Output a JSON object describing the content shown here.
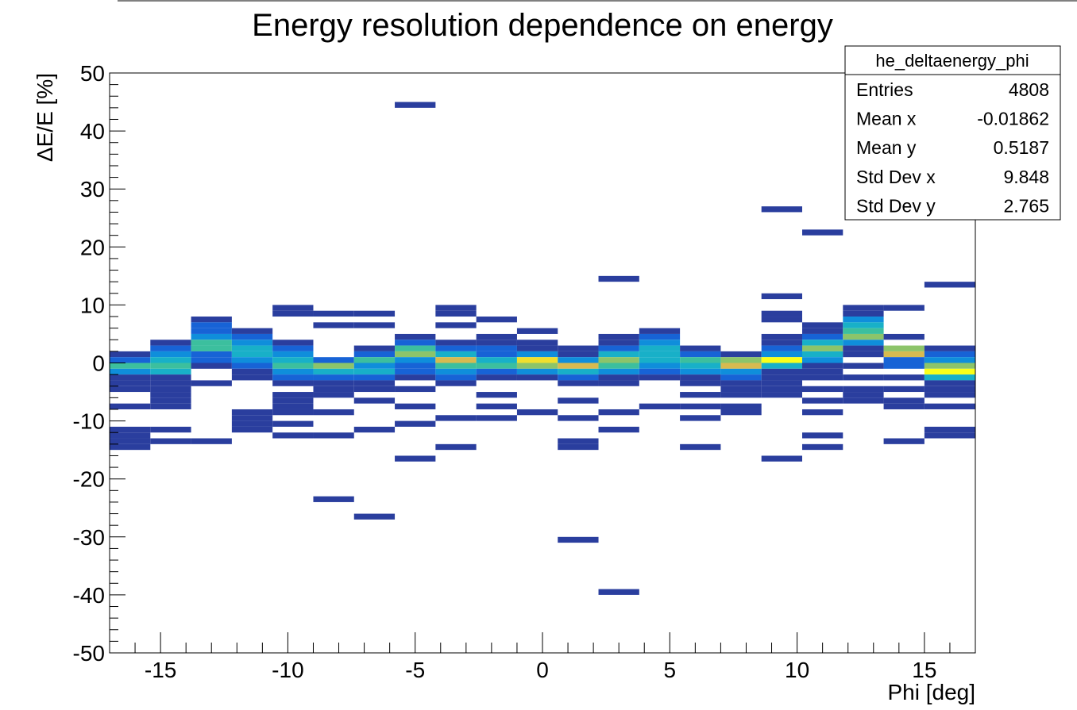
{
  "chart_data": {
    "type": "heatmap",
    "title": "Energy resolution dependence on energy",
    "xlabel": "Phi [deg]",
    "ylabel": "ΔE/E [%]",
    "xlim": [
      -17,
      17
    ],
    "ylim": [
      -50,
      50
    ],
    "x_ticks": [
      -15,
      -10,
      -5,
      0,
      5,
      10,
      15
    ],
    "y_ticks": [
      -50,
      -40,
      -30,
      -20,
      -10,
      0,
      10,
      20,
      30,
      40,
      50
    ],
    "x_tick_labels": [
      "-15",
      "-10",
      "-5",
      "0",
      "5",
      "10",
      "15"
    ],
    "y_tick_labels": [
      "-50",
      "-40",
      "-30",
      "-20",
      "-10",
      "0",
      "10",
      "20",
      "30",
      "40",
      "50"
    ],
    "grid": false,
    "legend": "none",
    "x_bin_edges": [
      -17,
      -15.4,
      -13.8,
      -12.2,
      -10.6,
      -9.0,
      -7.4,
      -5.8,
      -4.2,
      -2.6,
      -1.0,
      0.6,
      2.2,
      3.8,
      5.4,
      7.0,
      8.6,
      10.2,
      11.8,
      13.4,
      15.0,
      17.0
    ],
    "y_bin_width": 1,
    "palette": [
      "#2a3e9e",
      "#1763d6",
      "#0f8edb",
      "#18b0c8",
      "#3cbf9e",
      "#8cc46a",
      "#d7ba50",
      "#f0df2e",
      "#faff1a"
    ],
    "cells": [
      [
        0,
        1,
        1
      ],
      [
        0,
        0,
        2
      ],
      [
        0,
        -1,
        5
      ],
      [
        0,
        -2,
        3
      ],
      [
        0,
        -3,
        1
      ],
      [
        0,
        -4,
        1
      ],
      [
        0,
        -5,
        1
      ],
      [
        0,
        -8,
        1
      ],
      [
        0,
        -12,
        1
      ],
      [
        0,
        -13,
        1
      ],
      [
        0,
        -14,
        1
      ],
      [
        0,
        -15,
        1
      ],
      [
        1,
        3,
        1
      ],
      [
        1,
        2,
        2
      ],
      [
        1,
        1,
        3
      ],
      [
        1,
        0,
        4
      ],
      [
        1,
        -1,
        5
      ],
      [
        1,
        -2,
        4
      ],
      [
        1,
        -3,
        1
      ],
      [
        1,
        -4,
        1
      ],
      [
        1,
        -5,
        1
      ],
      [
        1,
        -6,
        1
      ],
      [
        1,
        -7,
        1
      ],
      [
        1,
        -8,
        1
      ],
      [
        1,
        -12,
        1
      ],
      [
        1,
        -14,
        1
      ],
      [
        2,
        7,
        1
      ],
      [
        2,
        6,
        2
      ],
      [
        2,
        5,
        2
      ],
      [
        2,
        4,
        3
      ],
      [
        2,
        3,
        5
      ],
      [
        2,
        2,
        5
      ],
      [
        2,
        1,
        2
      ],
      [
        2,
        0,
        2
      ],
      [
        2,
        -1,
        1
      ],
      [
        2,
        -4,
        1
      ],
      [
        2,
        -14,
        1
      ],
      [
        3,
        5,
        1
      ],
      [
        3,
        4,
        2
      ],
      [
        3,
        3,
        3
      ],
      [
        3,
        2,
        4
      ],
      [
        3,
        1,
        4
      ],
      [
        3,
        0,
        3
      ],
      [
        3,
        -1,
        2
      ],
      [
        3,
        -2,
        1
      ],
      [
        3,
        -3,
        1
      ],
      [
        3,
        -9,
        1
      ],
      [
        3,
        -10,
        1
      ],
      [
        3,
        -11,
        1
      ],
      [
        3,
        -12,
        1
      ],
      [
        4,
        9,
        1
      ],
      [
        4,
        8,
        1
      ],
      [
        4,
        3,
        1
      ],
      [
        4,
        2,
        2
      ],
      [
        4,
        1,
        3
      ],
      [
        4,
        0,
        4
      ],
      [
        4,
        -1,
        5
      ],
      [
        4,
        -2,
        3
      ],
      [
        4,
        -3,
        2
      ],
      [
        4,
        -4,
        1
      ],
      [
        4,
        -6,
        1
      ],
      [
        4,
        -7,
        1
      ],
      [
        4,
        -8,
        1
      ],
      [
        4,
        -9,
        1
      ],
      [
        4,
        -11,
        1
      ],
      [
        4,
        -13,
        1
      ],
      [
        5,
        8,
        1
      ],
      [
        5,
        6,
        1
      ],
      [
        5,
        0,
        2
      ],
      [
        5,
        -1,
        6
      ],
      [
        5,
        -2,
        4
      ],
      [
        5,
        -3,
        2
      ],
      [
        5,
        -4,
        1
      ],
      [
        5,
        -5,
        1
      ],
      [
        5,
        -6,
        1
      ],
      [
        5,
        -9,
        1
      ],
      [
        5,
        -13,
        1
      ],
      [
        5,
        -24,
        1
      ],
      [
        6,
        8,
        1
      ],
      [
        6,
        6,
        1
      ],
      [
        6,
        2,
        1
      ],
      [
        6,
        1,
        2
      ],
      [
        6,
        0,
        5
      ],
      [
        6,
        -1,
        3
      ],
      [
        6,
        -2,
        4
      ],
      [
        6,
        -3,
        2
      ],
      [
        6,
        -4,
        1
      ],
      [
        6,
        -5,
        1
      ],
      [
        6,
        -7,
        1
      ],
      [
        6,
        -12,
        1
      ],
      [
        6,
        -27,
        1
      ],
      [
        7,
        44,
        1
      ],
      [
        7,
        4,
        1
      ],
      [
        7,
        3,
        2
      ],
      [
        7,
        2,
        5
      ],
      [
        7,
        1,
        6
      ],
      [
        7,
        0,
        3
      ],
      [
        7,
        -1,
        2
      ],
      [
        7,
        -2,
        2
      ],
      [
        7,
        -3,
        1
      ],
      [
        7,
        -5,
        1
      ],
      [
        7,
        -8,
        1
      ],
      [
        7,
        -11,
        1
      ],
      [
        7,
        -17,
        1
      ],
      [
        8,
        9,
        1
      ],
      [
        8,
        8,
        1
      ],
      [
        8,
        6,
        1
      ],
      [
        8,
        3,
        1
      ],
      [
        8,
        2,
        2
      ],
      [
        8,
        1,
        4
      ],
      [
        8,
        0,
        7
      ],
      [
        8,
        -1,
        5
      ],
      [
        8,
        -2,
        3
      ],
      [
        8,
        -3,
        2
      ],
      [
        8,
        -4,
        1
      ],
      [
        8,
        -10,
        1
      ],
      [
        8,
        -15,
        1
      ],
      [
        9,
        7,
        1
      ],
      [
        9,
        4,
        1
      ],
      [
        9,
        3,
        1
      ],
      [
        9,
        2,
        2
      ],
      [
        9,
        1,
        2
      ],
      [
        9,
        0,
        4
      ],
      [
        9,
        -1,
        5
      ],
      [
        9,
        -2,
        2
      ],
      [
        9,
        -3,
        1
      ],
      [
        9,
        -6,
        1
      ],
      [
        9,
        -8,
        1
      ],
      [
        9,
        -10,
        1
      ],
      [
        10,
        5,
        1
      ],
      [
        10,
        3,
        1
      ],
      [
        10,
        2,
        1
      ],
      [
        10,
        1,
        3
      ],
      [
        10,
        0,
        8
      ],
      [
        10,
        -1,
        6
      ],
      [
        10,
        -2,
        3
      ],
      [
        10,
        -3,
        1
      ],
      [
        10,
        -9,
        1
      ],
      [
        11,
        2,
        1
      ],
      [
        11,
        1,
        1
      ],
      [
        11,
        0,
        3
      ],
      [
        11,
        -1,
        7
      ],
      [
        11,
        -2,
        4
      ],
      [
        11,
        -3,
        2
      ],
      [
        11,
        -4,
        1
      ],
      [
        11,
        -7,
        1
      ],
      [
        11,
        -10,
        1
      ],
      [
        11,
        -14,
        1
      ],
      [
        11,
        -15,
        1
      ],
      [
        11,
        -31,
        1
      ],
      [
        12,
        14,
        1
      ],
      [
        12,
        4,
        1
      ],
      [
        12,
        3,
        1
      ],
      [
        12,
        2,
        2
      ],
      [
        12,
        1,
        4
      ],
      [
        12,
        0,
        6
      ],
      [
        12,
        -1,
        5
      ],
      [
        12,
        -2,
        3
      ],
      [
        12,
        -3,
        1
      ],
      [
        12,
        -4,
        1
      ],
      [
        12,
        -9,
        1
      ],
      [
        12,
        -12,
        1
      ],
      [
        12,
        -40,
        1
      ],
      [
        13,
        5,
        1
      ],
      [
        13,
        4,
        2
      ],
      [
        13,
        3,
        3
      ],
      [
        13,
        2,
        4
      ],
      [
        13,
        1,
        4
      ],
      [
        13,
        0,
        4
      ],
      [
        13,
        -1,
        3
      ],
      [
        13,
        -2,
        2
      ],
      [
        13,
        -3,
        1
      ],
      [
        13,
        -8,
        1
      ],
      [
        14,
        2,
        1
      ],
      [
        14,
        1,
        2
      ],
      [
        14,
        0,
        5
      ],
      [
        14,
        -1,
        4
      ],
      [
        14,
        -2,
        3
      ],
      [
        14,
        -3,
        1
      ],
      [
        14,
        -4,
        1
      ],
      [
        14,
        -6,
        1
      ],
      [
        14,
        -8,
        1
      ],
      [
        14,
        -10,
        1
      ],
      [
        14,
        -15,
        1
      ],
      [
        15,
        1,
        1
      ],
      [
        15,
        0,
        6
      ],
      [
        15,
        -1,
        7
      ],
      [
        15,
        -2,
        3
      ],
      [
        15,
        -3,
        2
      ],
      [
        15,
        -4,
        1
      ],
      [
        15,
        -5,
        1
      ],
      [
        15,
        -6,
        1
      ],
      [
        15,
        -8,
        1
      ],
      [
        15,
        -9,
        1
      ],
      [
        16,
        11,
        1
      ],
      [
        16,
        8,
        1
      ],
      [
        16,
        7,
        1
      ],
      [
        16,
        4,
        1
      ],
      [
        16,
        3,
        1
      ],
      [
        16,
        2,
        2
      ],
      [
        16,
        1,
        3
      ],
      [
        16,
        0,
        9
      ],
      [
        16,
        -1,
        4
      ],
      [
        16,
        -2,
        1
      ],
      [
        16,
        -3,
        1
      ],
      [
        16,
        -4,
        1
      ],
      [
        16,
        -5,
        1
      ],
      [
        16,
        -6,
        1
      ],
      [
        16,
        -17,
        1
      ],
      [
        16,
        26,
        1
      ],
      [
        17,
        6,
        1
      ],
      [
        17,
        5,
        1
      ],
      [
        17,
        4,
        2
      ],
      [
        17,
        3,
        4
      ],
      [
        17,
        2,
        6
      ],
      [
        17,
        1,
        4
      ],
      [
        17,
        0,
        3
      ],
      [
        17,
        -1,
        1
      ],
      [
        17,
        -2,
        1
      ],
      [
        17,
        -3,
        1
      ],
      [
        17,
        -5,
        1
      ],
      [
        17,
        -7,
        1
      ],
      [
        17,
        -9,
        1
      ],
      [
        17,
        -13,
        1
      ],
      [
        17,
        -15,
        1
      ],
      [
        17,
        22,
        1
      ],
      [
        18,
        9,
        1
      ],
      [
        18,
        8,
        1
      ],
      [
        18,
        7,
        3
      ],
      [
        18,
        6,
        4
      ],
      [
        18,
        5,
        5
      ],
      [
        18,
        4,
        6
      ],
      [
        18,
        3,
        3
      ],
      [
        18,
        2,
        1
      ],
      [
        18,
        1,
        1
      ],
      [
        18,
        -1,
        1
      ],
      [
        18,
        -3,
        1
      ],
      [
        18,
        -5,
        1
      ],
      [
        18,
        -6,
        1
      ],
      [
        18,
        -7,
        1
      ],
      [
        19,
        9,
        1
      ],
      [
        19,
        4,
        1
      ],
      [
        19,
        2,
        6
      ],
      [
        19,
        1,
        7
      ],
      [
        19,
        0,
        2
      ],
      [
        19,
        -1,
        2
      ],
      [
        19,
        -3,
        1
      ],
      [
        19,
        -5,
        1
      ],
      [
        19,
        -7,
        1
      ],
      [
        19,
        -8,
        1
      ],
      [
        19,
        -14,
        1
      ],
      [
        20,
        13,
        1
      ],
      [
        20,
        2,
        1
      ],
      [
        20,
        1,
        2
      ],
      [
        20,
        0,
        3
      ],
      [
        20,
        -1,
        6
      ],
      [
        20,
        -2,
        9
      ],
      [
        20,
        -3,
        4
      ],
      [
        20,
        -4,
        1
      ],
      [
        20,
        -5,
        1
      ],
      [
        20,
        -6,
        1
      ],
      [
        20,
        -8,
        1
      ],
      [
        20,
        -12,
        1
      ],
      [
        20,
        -13,
        1
      ]
    ]
  },
  "stats_box": {
    "name": "he_deltaenergy_phi",
    "rows": [
      {
        "label": "Entries",
        "value": "4808"
      },
      {
        "label": "Mean x",
        "value": "-0.01862"
      },
      {
        "label": "Mean y",
        "value": "0.5187"
      },
      {
        "label": "Std Dev x",
        "value": "9.848"
      },
      {
        "label": "Std Dev y",
        "value": "2.765"
      }
    ]
  }
}
